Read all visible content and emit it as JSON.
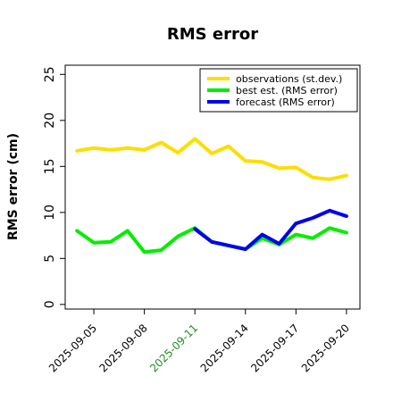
{
  "chart_data": {
    "type": "line",
    "title": "RMS error",
    "xlabel": "",
    "ylabel": "RMS error (cm)",
    "ylim": [
      -0.5,
      26.0
    ],
    "yticks": [
      0,
      5,
      10,
      15,
      20,
      25
    ],
    "x": [
      "2025-09-04",
      "2025-09-05",
      "2025-09-06",
      "2025-09-07",
      "2025-09-08",
      "2025-09-09",
      "2025-09-10",
      "2025-09-11",
      "2025-09-12",
      "2025-09-13",
      "2025-09-14",
      "2025-09-15",
      "2025-09-16",
      "2025-09-17",
      "2025-09-18",
      "2025-09-19",
      "2025-09-20"
    ],
    "xticks": [
      {
        "label": "2025-09-05",
        "color": "#000000"
      },
      {
        "label": "2025-09-08",
        "color": "#000000"
      },
      {
        "label": "2025-09-11",
        "color": "#228b22"
      },
      {
        "label": "2025-09-14",
        "color": "#000000"
      },
      {
        "label": "2025-09-17",
        "color": "#000000"
      },
      {
        "label": "2025-09-20",
        "color": "#000000"
      }
    ],
    "grid": false,
    "legend_position": "top-right",
    "series": [
      {
        "name": "observations (st.dev.)",
        "color": "#ffdd00",
        "x": [
          "2025-09-04",
          "2025-09-05",
          "2025-09-06",
          "2025-09-07",
          "2025-09-08",
          "2025-09-09",
          "2025-09-10",
          "2025-09-11",
          "2025-09-12",
          "2025-09-13",
          "2025-09-14",
          "2025-09-15",
          "2025-09-16",
          "2025-09-17",
          "2025-09-18",
          "2025-09-19",
          "2025-09-20"
        ],
        "values": [
          16.7,
          17.0,
          16.8,
          17.0,
          16.8,
          17.6,
          16.5,
          18.0,
          16.4,
          17.2,
          15.6,
          15.5,
          14.8,
          14.9,
          13.8,
          13.6,
          14.0
        ]
      },
      {
        "name": "best est. (RMS error)",
        "color": "#00ee00",
        "x": [
          "2025-09-04",
          "2025-09-05",
          "2025-09-06",
          "2025-09-07",
          "2025-09-08",
          "2025-09-09",
          "2025-09-10",
          "2025-09-11",
          "2025-09-12",
          "2025-09-13",
          "2025-09-14",
          "2025-09-15",
          "2025-09-16",
          "2025-09-17",
          "2025-09-18",
          "2025-09-19",
          "2025-09-20"
        ],
        "values": [
          8.0,
          6.7,
          6.8,
          8.0,
          5.7,
          5.9,
          7.4,
          8.3,
          6.8,
          6.4,
          6.0,
          7.2,
          6.5,
          7.6,
          7.2,
          8.3,
          7.8
        ]
      },
      {
        "name": "forecast (RMS error)",
        "color": "#0000ee",
        "x": [
          "2025-09-11",
          "2025-09-12",
          "2025-09-13",
          "2025-09-14",
          "2025-09-15",
          "2025-09-16",
          "2025-09-17",
          "2025-09-18",
          "2025-09-19",
          "2025-09-20"
        ],
        "values": [
          8.2,
          6.8,
          6.4,
          6.0,
          7.6,
          6.6,
          8.8,
          9.4,
          10.2,
          9.6
        ]
      }
    ]
  }
}
